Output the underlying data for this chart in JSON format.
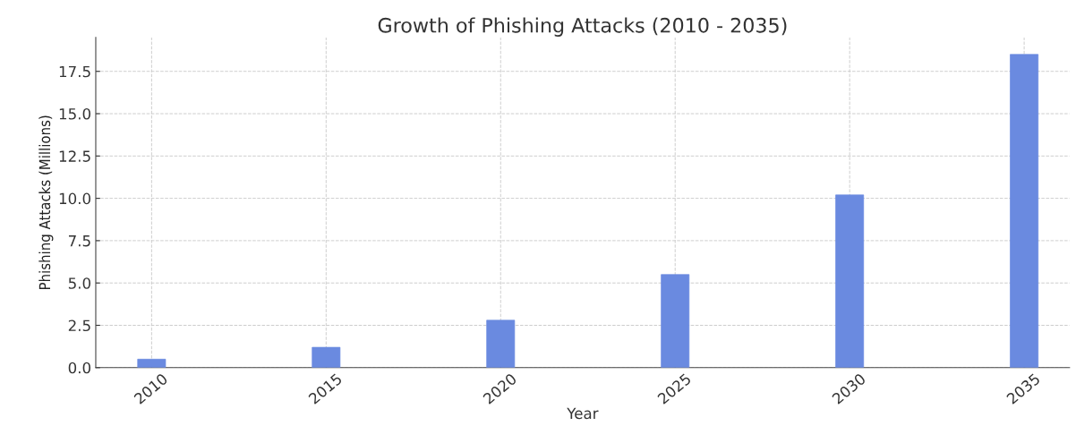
{
  "chart_data": {
    "type": "bar",
    "title": "Growth of Phishing Attacks (2010 - 2035)",
    "xlabel": "Year",
    "ylabel": "Phishing Attacks (Millions)",
    "x": [
      2010,
      2015,
      2020,
      2025,
      2030,
      2035
    ],
    "values": [
      0.5,
      1.2,
      2.8,
      5.5,
      10.2,
      18.5
    ],
    "color": "#6a8ae0",
    "xlim": [
      2008.4,
      2036.3
    ],
    "xticks": [
      2010,
      2015,
      2020,
      2025,
      2030,
      2035
    ],
    "ylim": [
      0,
      19.5
    ],
    "yticks": [
      {
        "value": 0,
        "label": "0.0"
      },
      2.5,
      {
        "value": 5,
        "label": "5.0"
      },
      7.5,
      {
        "value": 10,
        "label": "10.0"
      },
      12.5,
      {
        "value": 15,
        "label": "15.0"
      },
      17.5
    ],
    "grid": true
  }
}
